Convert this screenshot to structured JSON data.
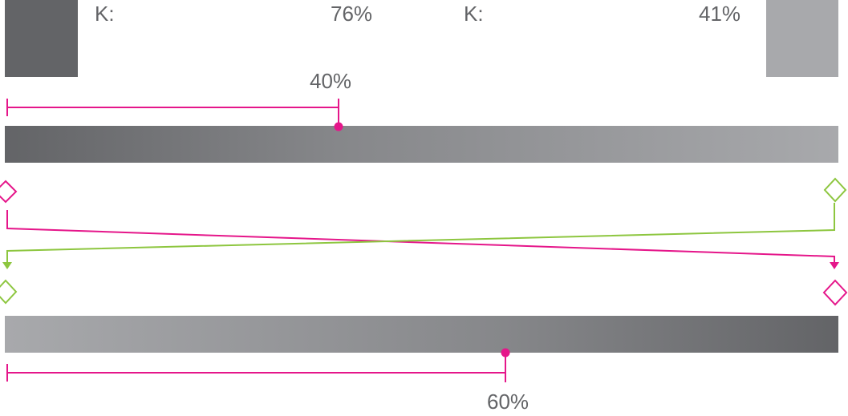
{
  "top": {
    "label_left": "K:",
    "value_left": "76%",
    "label_right": "K:",
    "value_right": "41%"
  },
  "gradient_top": {
    "midpoint_label": "40%",
    "midpoint": 0.4
  },
  "gradient_bottom": {
    "midpoint_label": "60%",
    "midpoint": 0.6
  },
  "colors": {
    "dark_gray": "#636467",
    "light_gray": "#a8a9ac",
    "magenta": "#e5168a",
    "green": "#8dc63f"
  }
}
